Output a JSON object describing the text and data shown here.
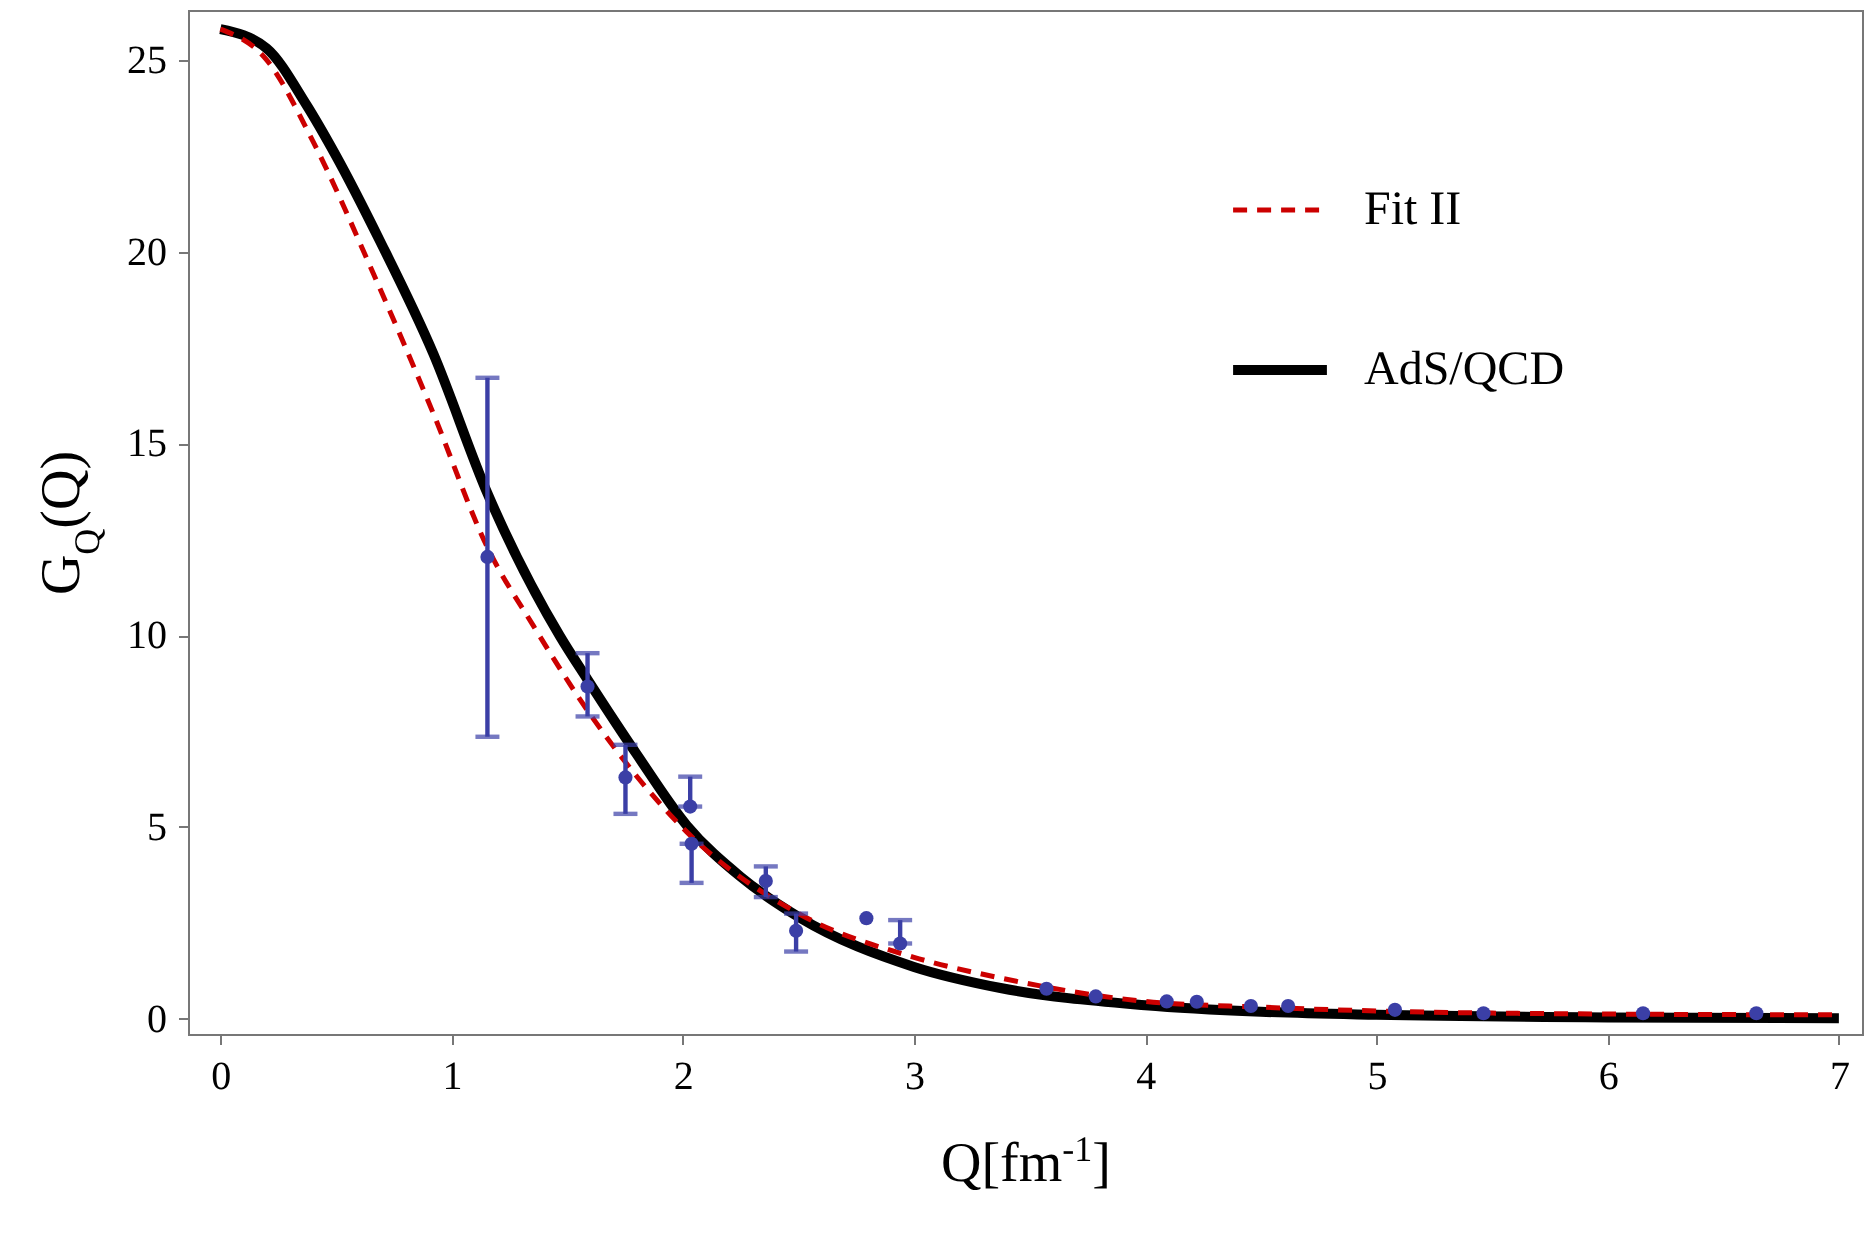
{
  "chart_data": {
    "type": "line",
    "xlabel": "Q[fm$^{-1}$]",
    "ylabel": "G$_{Q}$(Q)",
    "xlim": [
      -0.14,
      7.1
    ],
    "ylim": [
      -0.4,
      26.3
    ],
    "xticks": [
      0,
      1,
      2,
      3,
      4,
      5,
      6,
      7
    ],
    "yticks": [
      0,
      5,
      10,
      15,
      20,
      25
    ],
    "grid": false,
    "legend": "top right",
    "series": [
      {
        "name": "Fit II",
        "line_style": "dashed",
        "color": "#cc0000",
        "x": [
          0,
          0.2,
          0.4,
          0.663,
          0.921,
          1.154,
          1.354,
          1.614,
          2.017,
          2.51,
          3.0,
          3.374,
          4,
          4.5,
          5,
          6,
          7
        ],
        "values": [
          25.8,
          25.0,
          22.88,
          19.41,
          15.78,
          12.3,
          10.24,
          7.81,
          4.87,
          2.71,
          1.6,
          1.06,
          0.45,
          0.3,
          0.2,
          0.12,
          0.1
        ]
      },
      {
        "name": "AdS/QCD",
        "line_style": "solid",
        "color": "#000000",
        "x": [
          0,
          0.2,
          0.372,
          0.5,
          0.69,
          0.921,
          1.155,
          1.468,
          1.587,
          1.8,
          2.017,
          2.25,
          2.51,
          3.0,
          3.374,
          4,
          4.5,
          5,
          6,
          7
        ],
        "values": [
          25.8,
          25.3,
          23.83,
          22.5,
          20.28,
          17.34,
          13.7,
          9.98,
          8.85,
          6.9,
          5.04,
          3.7,
          2.62,
          1.35,
          0.8,
          0.35,
          0.18,
          0.1,
          0.03,
          0.01
        ]
      },
      {
        "type": "scatter",
        "marker": "circle",
        "color": "#3b3fa6",
        "x": [
          1.155,
          1.588,
          1.752,
          2.032,
          2.038,
          2.359,
          2.49,
          2.794,
          2.94,
          3.573,
          3.786,
          4.093,
          4.223,
          4.457,
          4.618,
          5.08,
          5.463,
          6.153,
          6.643
        ],
        "values": [
          12.04,
          8.66,
          6.29,
          5.53,
          4.56,
          3.59,
          2.29,
          2.62,
          1.96,
          0.78,
          0.58,
          0.45,
          0.44,
          0.33,
          0.33,
          0.23,
          0.14,
          0.14,
          0.14
        ],
        "errors": [
          [
            7.35,
            16.71
          ],
          [
            7.88,
            9.53
          ],
          [
            5.34,
            7.14
          ],
          [
            5.53,
            6.31
          ],
          [
            3.54,
            4.56
          ],
          [
            3.17,
            3.97
          ],
          [
            1.75,
            2.74
          ],
          null,
          [
            1.96,
            2.57
          ],
          null,
          null,
          null,
          null,
          null,
          null,
          null,
          null,
          null,
          null
        ]
      }
    ]
  }
}
